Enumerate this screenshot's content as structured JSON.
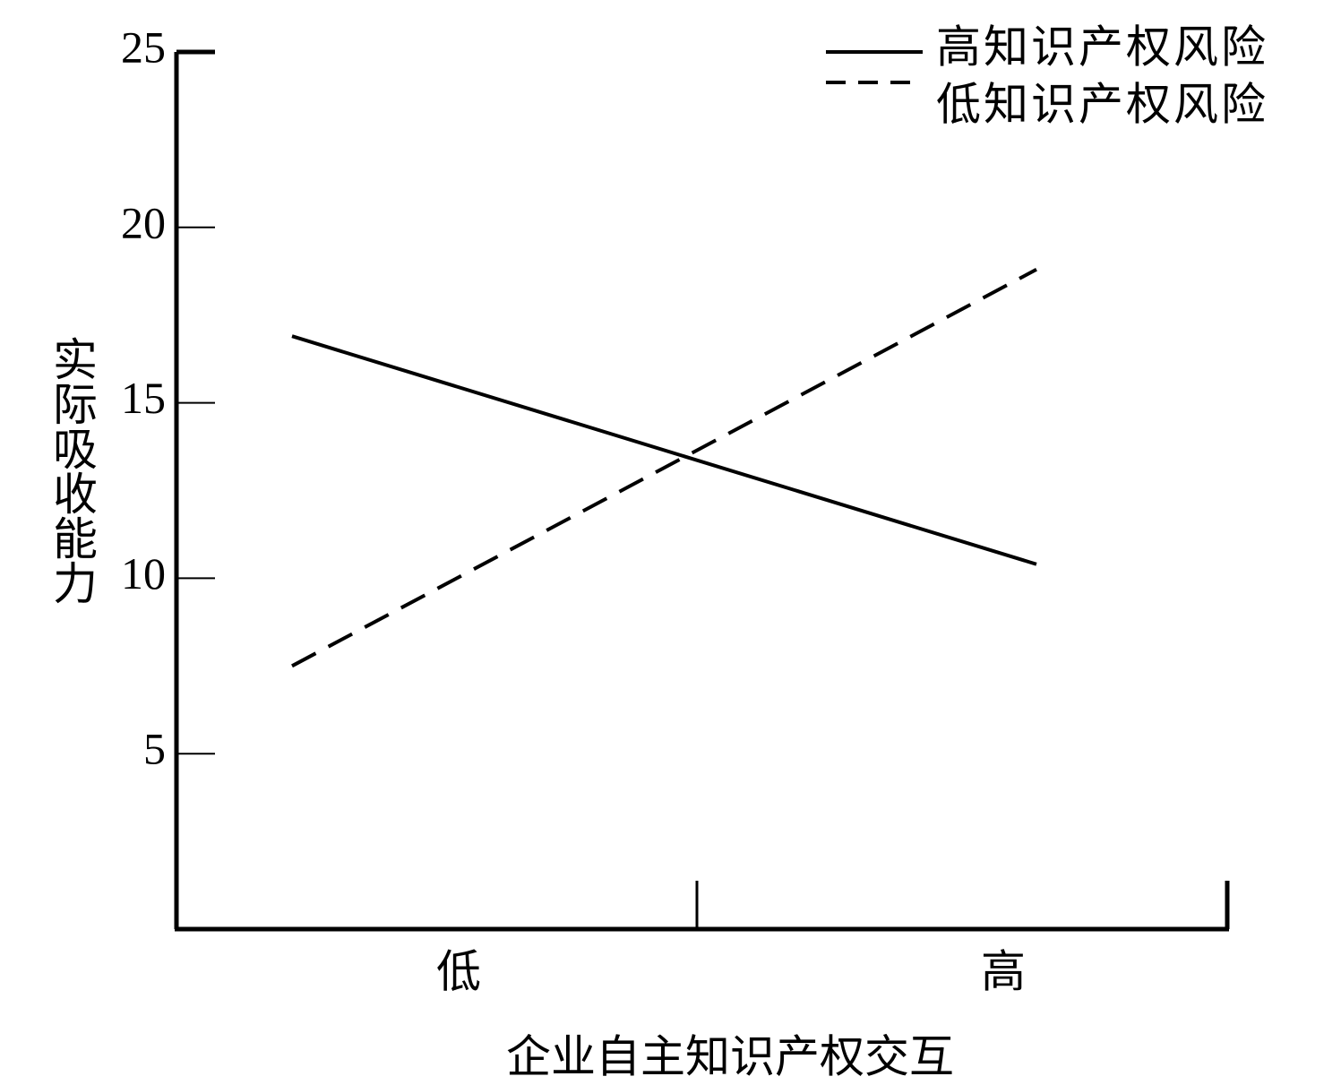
{
  "chart_data": {
    "type": "line",
    "xlabel": "企业自主知识产权交互",
    "ylabel": "实际吸收能力",
    "categories": [
      "低",
      "高"
    ],
    "series": [
      {
        "name": "高知识产权风险",
        "color": "#000000",
        "line_style": "solid",
        "values": [
          16.9,
          10.4
        ]
      },
      {
        "name": "低知识产权风险",
        "color": "#000000",
        "line_style": "dashed",
        "values": [
          7.5,
          18.8
        ]
      }
    ],
    "ylim": [
      0,
      25
    ],
    "yticks": [
      5,
      10,
      15,
      20,
      25
    ],
    "grid": false,
    "legend": "upper right"
  }
}
